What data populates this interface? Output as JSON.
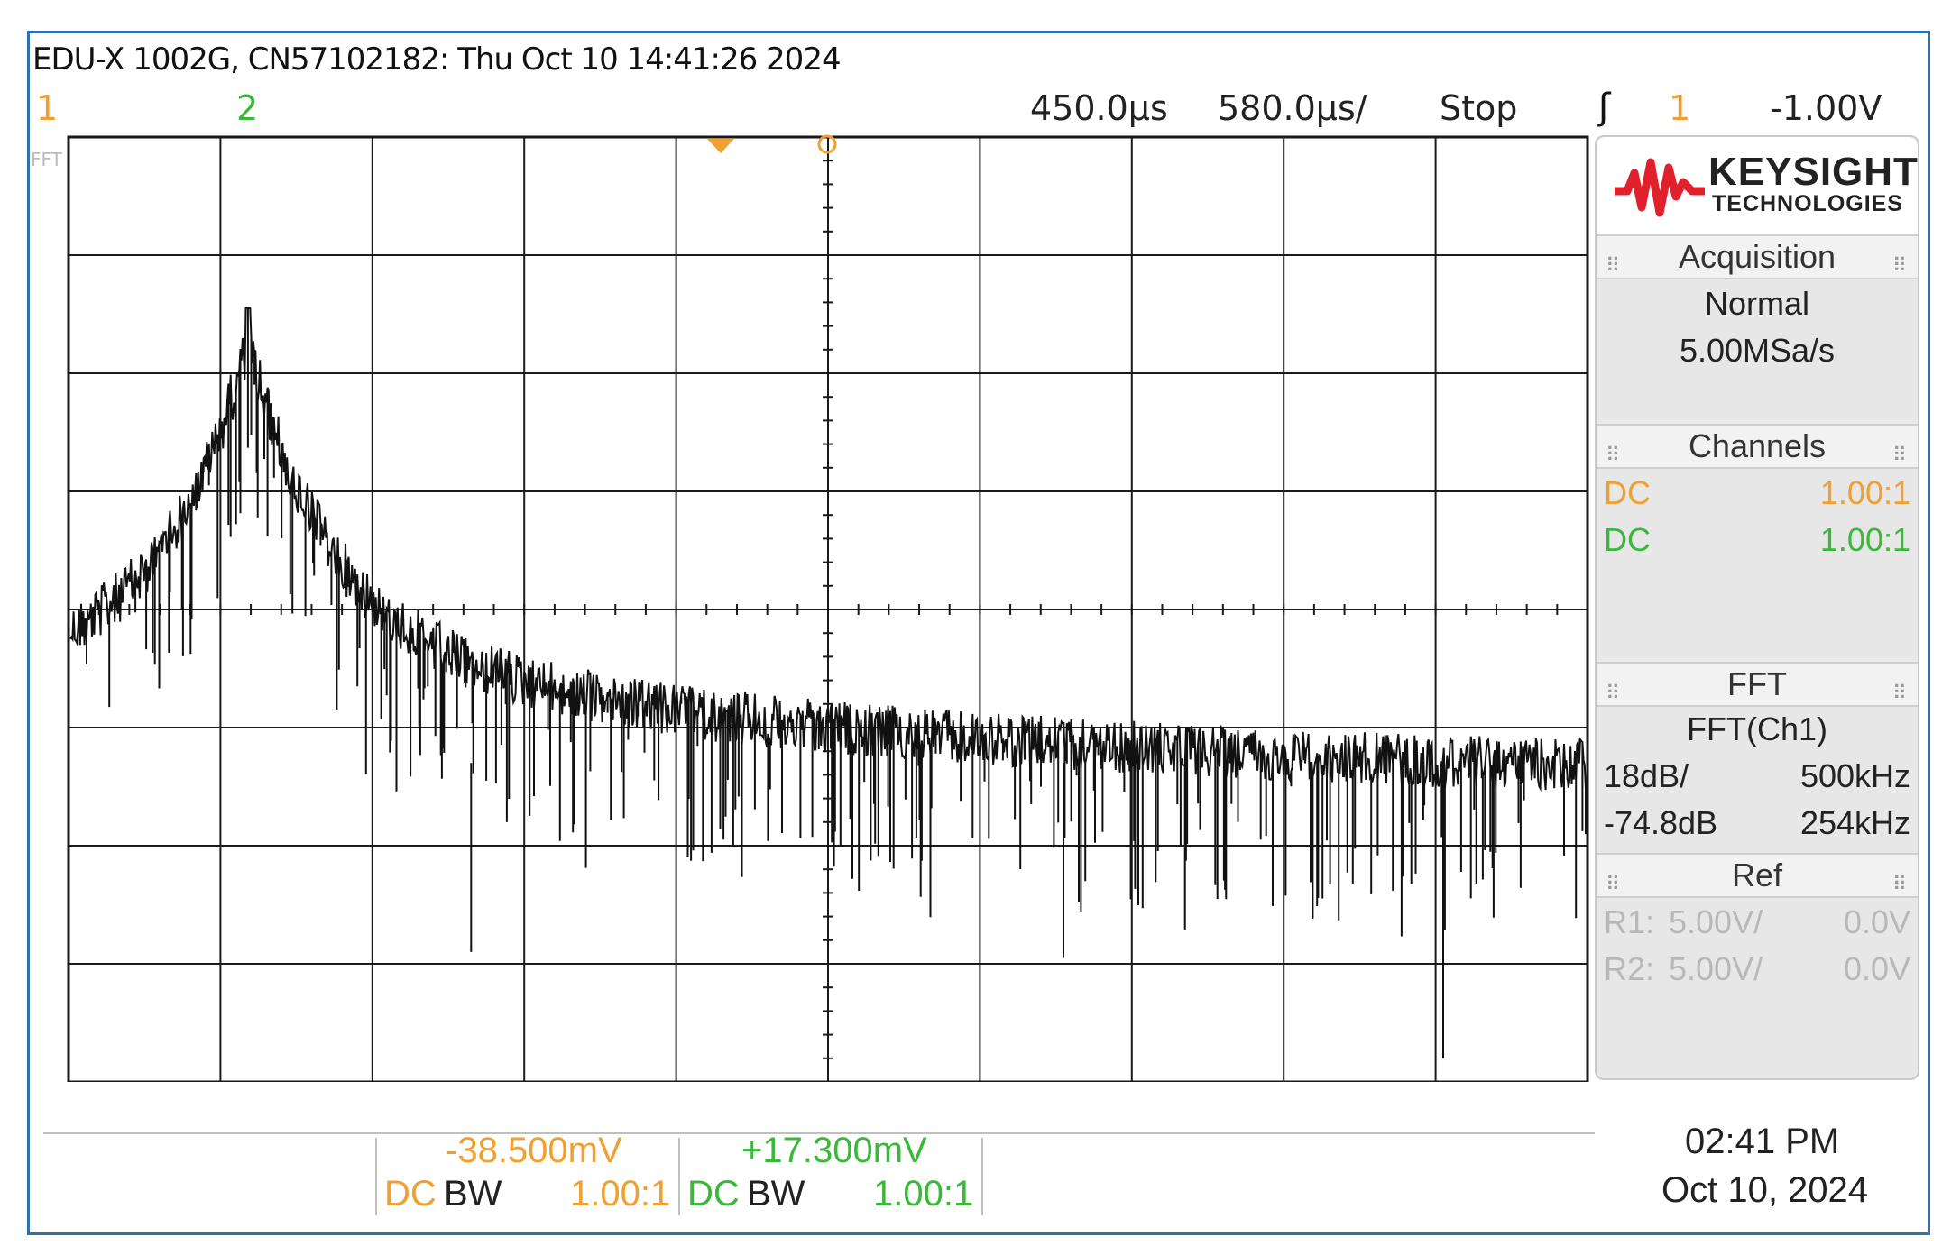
{
  "header": {
    "instrument": "EDU-X 1002G, CN57102182: Thu Oct 10 14:41:26 2024",
    "channel1_label": "1",
    "channel2_label": "2",
    "time_delay": "450.0µs",
    "time_scale": "580.0µs/",
    "run_state": "Stop",
    "trigger_icon": "ʃ",
    "trigger_source": "1",
    "trigger_level": "-1.00V"
  },
  "screen": {
    "fft_marker": "FFT"
  },
  "panel": {
    "logo_text": "KEYSIGHT",
    "logo_subtext": "TECHNOLOGIES",
    "acquisition": {
      "title": "Acquisition",
      "mode": "Normal",
      "rate": "5.00MSa/s"
    },
    "channels": {
      "title": "Channels",
      "rows": [
        {
          "coupling": "DC",
          "probe": "1.00:1",
          "color": "#f0a030"
        },
        {
          "coupling": "DC",
          "probe": "1.00:1",
          "color": "#3ab83a"
        }
      ]
    },
    "fft": {
      "title": "FFT",
      "source": "FFT(Ch1)",
      "scale": "18dB/",
      "span": "500kHz",
      "offset": "-74.8dB",
      "center": "254kHz"
    },
    "ref": {
      "title": "Ref",
      "rows": [
        {
          "name": "R1:",
          "scale": "5.00V/",
          "offset": "0.0V"
        },
        {
          "name": "R2:",
          "scale": "5.00V/",
          "offset": "0.0V"
        }
      ]
    }
  },
  "bottom": {
    "ch1": {
      "offset": "-38.500mV",
      "coupling": "DC",
      "bw": "BW",
      "probe": "1.00:1"
    },
    "ch2": {
      "offset": "+17.300mV",
      "coupling": "DC",
      "bw": "BW",
      "probe": "1.00:1"
    },
    "clock_time": "02:41 PM",
    "clock_date": "Oct 10, 2024"
  },
  "colors": {
    "ch1": "#f0a030",
    "ch2": "#3ab83a",
    "trace": "#111111",
    "grid": "#1a1a1a",
    "frame": "#2f6fb2",
    "logo_red": "#e0202a"
  },
  "trace_shape": {
    "description_points": "FFT spectrum, peak near first division",
    "peak_division": 1.18,
    "divisions_x": 10,
    "divisions_y": 8
  }
}
